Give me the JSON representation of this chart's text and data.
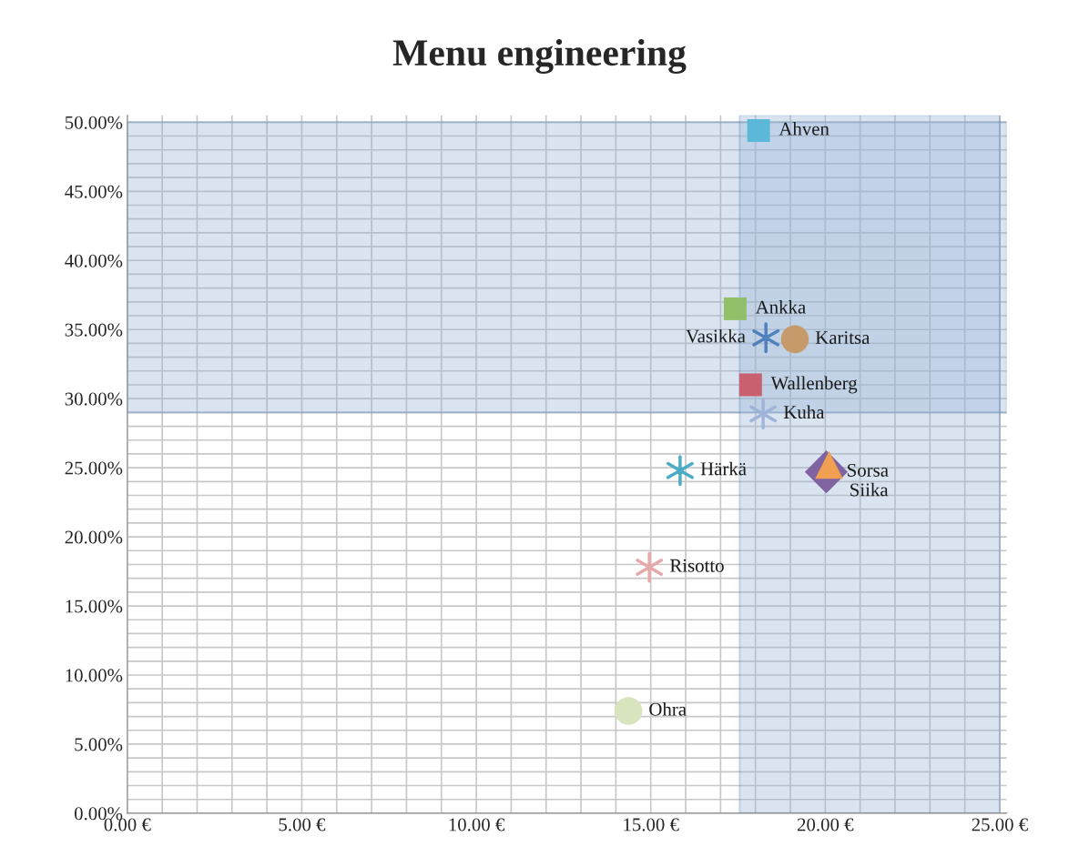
{
  "chart_data": {
    "type": "scatter",
    "title": "Menu engineering",
    "series": [
      {
        "name": "Ahven",
        "color": "#5bb8d8",
        "marker": "square",
        "x": [
          18.09
        ],
        "values": [
          49.4
        ]
      },
      {
        "name": "Ankka",
        "color": "#92c06a",
        "marker": "square",
        "x": [
          17.42
        ],
        "values": [
          36.5
        ]
      },
      {
        "name": "Vasikka",
        "color": "#4f81bd",
        "marker": "cross",
        "x": [
          18.3
        ],
        "values": [
          34.4
        ]
      },
      {
        "name": "Karitsa",
        "color": "#c69a6a",
        "marker": "circle",
        "x": [
          19.13
        ],
        "values": [
          34.3
        ]
      },
      {
        "name": "Wallenberg",
        "color": "#c86070",
        "marker": "square",
        "x": [
          17.86
        ],
        "values": [
          31.0
        ]
      },
      {
        "name": "Kuha",
        "color": "#9fb4d8",
        "marker": "cross",
        "x": [
          18.22
        ],
        "values": [
          28.9
        ]
      },
      {
        "name": "Härkä",
        "color": "#4bacc6",
        "marker": "cross",
        "x": [
          15.84
        ],
        "values": [
          24.8
        ]
      },
      {
        "name": "Sorsa",
        "color": "#8064a2",
        "marker": "diamond",
        "x": [
          20.03
        ],
        "values": [
          24.7
        ]
      },
      {
        "name": "Siika",
        "color": "#f0a050",
        "marker": "triangle",
        "x": [
          20.11
        ],
        "values": [
          25.2
        ]
      },
      {
        "name": "Risotto",
        "color": "#e6a8a8",
        "marker": "cross",
        "x": [
          14.96
        ],
        "values": [
          17.8
        ]
      },
      {
        "name": "Ohra",
        "color": "#d7e4bd",
        "marker": "circle",
        "x": [
          14.36
        ],
        "values": [
          7.4
        ]
      }
    ],
    "bands": [
      {
        "axis": "y",
        "from": 29.0,
        "to": 50,
        "color": "#95b3d7"
      },
      {
        "axis": "x",
        "from": 17.55,
        "to": 25,
        "color": "#95b3d7"
      }
    ],
    "xlim": [
      0,
      25.2
    ],
    "ylim": [
      0,
      50.5
    ],
    "xticks": [
      {
        "value": 0,
        "label": "0.00 €"
      },
      {
        "value": 1,
        "label": null
      },
      {
        "value": 2,
        "label": null
      },
      {
        "value": 3,
        "label": null
      },
      {
        "value": 4,
        "label": null
      },
      {
        "value": 5,
        "label": "5.00 €"
      },
      {
        "value": 6,
        "label": null
      },
      {
        "value": 7,
        "label": null
      },
      {
        "value": 8,
        "label": null
      },
      {
        "value": 9,
        "label": null
      },
      {
        "value": 10,
        "label": "10.00 €"
      },
      {
        "value": 11,
        "label": null
      },
      {
        "value": 12,
        "label": null
      },
      {
        "value": 13,
        "label": null
      },
      {
        "value": 14,
        "label": null
      },
      {
        "value": 15,
        "label": "15.00 €"
      },
      {
        "value": 16,
        "label": null
      },
      {
        "value": 17,
        "label": null
      },
      {
        "value": 18,
        "label": null
      },
      {
        "value": 19,
        "label": null
      },
      {
        "value": 20,
        "label": "20.00 €"
      },
      {
        "value": 21,
        "label": null
      },
      {
        "value": 22,
        "label": null
      },
      {
        "value": 23,
        "label": null
      },
      {
        "value": 24,
        "label": null
      },
      {
        "value": 25,
        "label": "25.00 €"
      }
    ],
    "yticks": [
      {
        "value": 0,
        "label": "0.00%"
      },
      {
        "value": 1,
        "label": null
      },
      {
        "value": 2,
        "label": null
      },
      {
        "value": 3,
        "label": null
      },
      {
        "value": 4,
        "label": null
      },
      {
        "value": 5,
        "label": "5.00%"
      },
      {
        "value": 6,
        "label": null
      },
      {
        "value": 7,
        "label": null
      },
      {
        "value": 8,
        "label": null
      },
      {
        "value": 9,
        "label": null
      },
      {
        "value": 10,
        "label": "10.00%"
      },
      {
        "value": 11,
        "label": null
      },
      {
        "value": 12,
        "label": null
      },
      {
        "value": 13,
        "label": null
      },
      {
        "value": 14,
        "label": null
      },
      {
        "value": 15,
        "label": "15.00%"
      },
      {
        "value": 16,
        "label": null
      },
      {
        "value": 17,
        "label": null
      },
      {
        "value": 18,
        "label": null
      },
      {
        "value": 19,
        "label": null
      },
      {
        "value": 20,
        "label": "20.00%"
      },
      {
        "value": 21,
        "label": null
      },
      {
        "value": 22,
        "label": null
      },
      {
        "value": 23,
        "label": null
      },
      {
        "value": 24,
        "label": null
      },
      {
        "value": 25,
        "label": "25.00%"
      },
      {
        "value": 26,
        "label": null
      },
      {
        "value": 27,
        "label": null
      },
      {
        "value": 28,
        "label": null
      },
      {
        "value": 29,
        "label": null
      },
      {
        "value": 30,
        "label": "30.00%"
      },
      {
        "value": 31,
        "label": null
      },
      {
        "value": 32,
        "label": null
      },
      {
        "value": 33,
        "label": null
      },
      {
        "value": 34,
        "label": null
      },
      {
        "value": 35,
        "label": "35.00%"
      },
      {
        "value": 36,
        "label": null
      },
      {
        "value": 37,
        "label": null
      },
      {
        "value": 38,
        "label": null
      },
      {
        "value": 39,
        "label": null
      },
      {
        "value": 40,
        "label": "40.00%"
      },
      {
        "value": 41,
        "label": null
      },
      {
        "value": 42,
        "label": null
      },
      {
        "value": 43,
        "label": null
      },
      {
        "value": 44,
        "label": null
      },
      {
        "value": 45,
        "label": "45.00%"
      },
      {
        "value": 46,
        "label": null
      },
      {
        "value": 47,
        "label": null
      },
      {
        "value": 48,
        "label": null
      },
      {
        "value": 49,
        "label": null
      },
      {
        "value": 50,
        "label": "50.00%"
      }
    ],
    "grid": true,
    "legend": false
  }
}
